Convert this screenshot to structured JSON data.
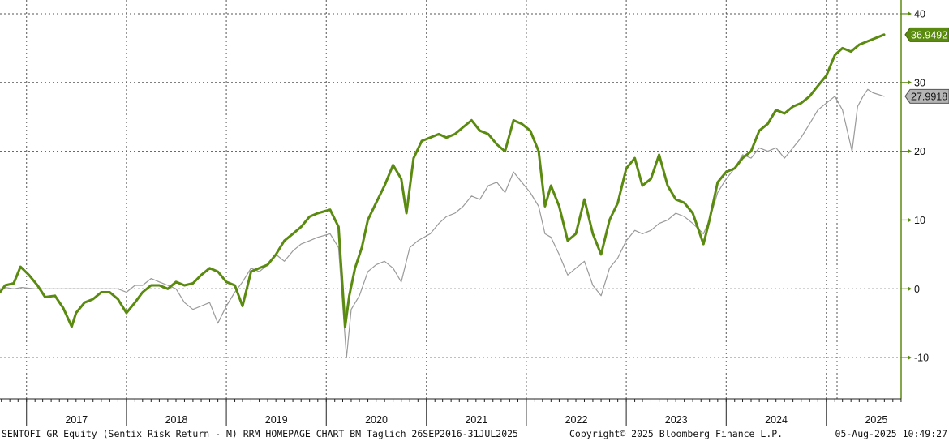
{
  "chart_data": {
    "type": "line",
    "title": "",
    "xlabel": "",
    "ylabel": "",
    "y_ticks": [
      -10,
      0,
      10,
      20,
      30,
      40
    ],
    "ylim": [
      -16,
      42
    ],
    "x_start": "2016-09-26",
    "x_end": "2025-07-31",
    "x_axis_years": [
      "2017",
      "2018",
      "2019",
      "2020",
      "2021",
      "2022",
      "2023",
      "2024",
      "2025"
    ],
    "grid": true,
    "legend": "none",
    "series": [
      {
        "color": "#5a8a0f",
        "last_value_label": "36.9492",
        "points": [
          [
            "2016-09-26",
            -0.5
          ],
          [
            "2016-10-15",
            0.5
          ],
          [
            "2016-11-15",
            0.8
          ],
          [
            "2016-12-10",
            3.2
          ],
          [
            "2017-01-10",
            2.0
          ],
          [
            "2017-02-10",
            0.5
          ],
          [
            "2017-03-10",
            -1.2
          ],
          [
            "2017-04-15",
            -1.0
          ],
          [
            "2017-05-15",
            -2.8
          ],
          [
            "2017-06-15",
            -5.5
          ],
          [
            "2017-07-01",
            -3.5
          ],
          [
            "2017-08-01",
            -2.0
          ],
          [
            "2017-09-01",
            -1.5
          ],
          [
            "2017-10-01",
            -0.5
          ],
          [
            "2017-11-01",
            -0.5
          ],
          [
            "2017-12-01",
            -1.5
          ],
          [
            "2018-01-01",
            -3.5
          ],
          [
            "2018-02-01",
            -2.0
          ],
          [
            "2018-03-01",
            -0.5
          ],
          [
            "2018-04-01",
            0.5
          ],
          [
            "2018-05-01",
            0.5
          ],
          [
            "2018-06-01",
            0.0
          ],
          [
            "2018-07-01",
            1.0
          ],
          [
            "2018-08-01",
            0.5
          ],
          [
            "2018-09-01",
            0.8
          ],
          [
            "2018-10-01",
            2.0
          ],
          [
            "2018-11-01",
            3.0
          ],
          [
            "2018-12-01",
            2.5
          ],
          [
            "2019-01-01",
            1.0
          ],
          [
            "2019-02-01",
            0.5
          ],
          [
            "2019-03-01",
            -2.5
          ],
          [
            "2019-04-01",
            2.5
          ],
          [
            "2019-05-01",
            3.0
          ],
          [
            "2019-06-01",
            3.5
          ],
          [
            "2019-07-01",
            5.0
          ],
          [
            "2019-08-01",
            7.0
          ],
          [
            "2019-09-01",
            8.0
          ],
          [
            "2019-10-01",
            9.0
          ],
          [
            "2019-11-01",
            10.5
          ],
          [
            "2019-12-01",
            11.0
          ],
          [
            "2020-01-15",
            11.5
          ],
          [
            "2020-02-15",
            9.0
          ],
          [
            "2020-03-10",
            -5.5
          ],
          [
            "2020-03-25",
            -1.0
          ],
          [
            "2020-04-15",
            3.0
          ],
          [
            "2020-05-10",
            6.0
          ],
          [
            "2020-06-01",
            10.0
          ],
          [
            "2020-07-01",
            12.5
          ],
          [
            "2020-08-01",
            15.0
          ],
          [
            "2020-09-01",
            18.0
          ],
          [
            "2020-10-01",
            16.0
          ],
          [
            "2020-10-20",
            11.0
          ],
          [
            "2020-11-15",
            19.0
          ],
          [
            "2020-12-15",
            21.5
          ],
          [
            "2021-01-15",
            22.0
          ],
          [
            "2021-02-15",
            22.5
          ],
          [
            "2021-03-15",
            22.0
          ],
          [
            "2021-04-15",
            22.5
          ],
          [
            "2021-05-15",
            23.5
          ],
          [
            "2021-06-15",
            24.5
          ],
          [
            "2021-07-15",
            23.0
          ],
          [
            "2021-08-15",
            22.5
          ],
          [
            "2021-09-15",
            21.0
          ],
          [
            "2021-10-15",
            20.0
          ],
          [
            "2021-11-15",
            24.5
          ],
          [
            "2021-12-15",
            24.0
          ],
          [
            "2022-01-15",
            23.0
          ],
          [
            "2022-02-15",
            20.0
          ],
          [
            "2022-03-10",
            12.0
          ],
          [
            "2022-04-01",
            15.0
          ],
          [
            "2022-05-01",
            12.0
          ],
          [
            "2022-06-01",
            7.0
          ],
          [
            "2022-07-01",
            8.0
          ],
          [
            "2022-08-01",
            13.0
          ],
          [
            "2022-09-01",
            8.0
          ],
          [
            "2022-10-01",
            5.0
          ],
          [
            "2022-11-01",
            10.0
          ],
          [
            "2022-12-01",
            12.5
          ],
          [
            "2023-01-01",
            17.5
          ],
          [
            "2023-02-01",
            19.0
          ],
          [
            "2023-03-01",
            15.0
          ],
          [
            "2023-04-01",
            16.0
          ],
          [
            "2023-05-01",
            19.5
          ],
          [
            "2023-06-01",
            15.0
          ],
          [
            "2023-07-01",
            13.0
          ],
          [
            "2023-08-01",
            12.5
          ],
          [
            "2023-09-01",
            11.0
          ],
          [
            "2023-10-10",
            6.5
          ],
          [
            "2023-11-01",
            10.0
          ],
          [
            "2023-12-01",
            15.5
          ],
          [
            "2024-01-01",
            17.0
          ],
          [
            "2024-02-01",
            17.5
          ],
          [
            "2024-03-01",
            19.0
          ],
          [
            "2024-04-01",
            20.0
          ],
          [
            "2024-05-01",
            23.0
          ],
          [
            "2024-06-01",
            24.0
          ],
          [
            "2024-07-01",
            26.0
          ],
          [
            "2024-08-01",
            25.5
          ],
          [
            "2024-09-01",
            26.5
          ],
          [
            "2024-10-01",
            27.0
          ],
          [
            "2024-11-01",
            28.0
          ],
          [
            "2024-12-01",
            29.5
          ],
          [
            "2025-01-01",
            31.0
          ],
          [
            "2025-02-01",
            34.0
          ],
          [
            "2025-03-01",
            35.0
          ],
          [
            "2025-04-01",
            34.5
          ],
          [
            "2025-05-01",
            35.5
          ],
          [
            "2025-06-01",
            36.0
          ],
          [
            "2025-07-31",
            36.9492
          ]
        ]
      },
      {
        "color": "#9a9a9a",
        "last_value_label": "27.9918",
        "points": [
          [
            "2016-09-26",
            -0.5
          ],
          [
            "2016-10-15",
            0.2
          ],
          [
            "2016-11-15",
            0.0
          ],
          [
            "2016-12-15",
            0.2
          ],
          [
            "2017-02-01",
            0.0
          ],
          [
            "2017-04-01",
            0.0
          ],
          [
            "2017-06-01",
            0.0
          ],
          [
            "2017-08-01",
            0.0
          ],
          [
            "2017-10-01",
            0.0
          ],
          [
            "2017-12-01",
            0.0
          ],
          [
            "2018-01-01",
            -0.5
          ],
          [
            "2018-02-01",
            0.5
          ],
          [
            "2018-03-01",
            0.5
          ],
          [
            "2018-04-01",
            1.5
          ],
          [
            "2018-05-01",
            1.0
          ],
          [
            "2018-06-01",
            0.5
          ],
          [
            "2018-07-01",
            0.0
          ],
          [
            "2018-08-01",
            -2.0
          ],
          [
            "2018-09-01",
            -3.0
          ],
          [
            "2018-10-01",
            -2.5
          ],
          [
            "2018-11-01",
            -2.0
          ],
          [
            "2018-12-01",
            -5.0
          ],
          [
            "2019-01-01",
            -2.5
          ],
          [
            "2019-02-01",
            -0.5
          ],
          [
            "2019-03-01",
            1.0
          ],
          [
            "2019-04-01",
            3.0
          ],
          [
            "2019-05-01",
            2.5
          ],
          [
            "2019-06-01",
            3.5
          ],
          [
            "2019-07-01",
            5.0
          ],
          [
            "2019-08-01",
            4.0
          ],
          [
            "2019-09-01",
            5.5
          ],
          [
            "2019-10-01",
            6.5
          ],
          [
            "2019-11-01",
            7.0
          ],
          [
            "2019-12-01",
            7.5
          ],
          [
            "2020-01-15",
            8.0
          ],
          [
            "2020-02-15",
            6.0
          ],
          [
            "2020-03-15",
            -10.0
          ],
          [
            "2020-04-01",
            -3.0
          ],
          [
            "2020-05-01",
            -1.0
          ],
          [
            "2020-06-01",
            2.5
          ],
          [
            "2020-07-01",
            3.5
          ],
          [
            "2020-08-01",
            4.0
          ],
          [
            "2020-09-01",
            3.0
          ],
          [
            "2020-10-01",
            1.0
          ],
          [
            "2020-11-01",
            6.0
          ],
          [
            "2020-12-01",
            7.0
          ],
          [
            "2021-01-15",
            8.0
          ],
          [
            "2021-02-15",
            9.5
          ],
          [
            "2021-03-15",
            10.5
          ],
          [
            "2021-04-15",
            11.0
          ],
          [
            "2021-05-15",
            12.0
          ],
          [
            "2021-06-15",
            13.5
          ],
          [
            "2021-07-15",
            13.0
          ],
          [
            "2021-08-15",
            15.0
          ],
          [
            "2021-09-15",
            15.5
          ],
          [
            "2021-10-15",
            14.0
          ],
          [
            "2021-11-15",
            17.0
          ],
          [
            "2021-12-15",
            15.5
          ],
          [
            "2022-01-15",
            14.0
          ],
          [
            "2022-02-15",
            12.0
          ],
          [
            "2022-03-10",
            8.0
          ],
          [
            "2022-04-01",
            7.5
          ],
          [
            "2022-05-01",
            5.0
          ],
          [
            "2022-06-01",
            2.0
          ],
          [
            "2022-07-01",
            3.0
          ],
          [
            "2022-08-01",
            4.0
          ],
          [
            "2022-09-01",
            0.5
          ],
          [
            "2022-10-01",
            -1.0
          ],
          [
            "2022-11-01",
            3.0
          ],
          [
            "2022-12-01",
            4.5
          ],
          [
            "2023-01-01",
            7.0
          ],
          [
            "2023-02-01",
            8.5
          ],
          [
            "2023-03-01",
            8.0
          ],
          [
            "2023-04-01",
            8.5
          ],
          [
            "2023-05-01",
            9.5
          ],
          [
            "2023-06-01",
            10.0
          ],
          [
            "2023-07-01",
            11.0
          ],
          [
            "2023-08-01",
            10.5
          ],
          [
            "2023-09-01",
            9.5
          ],
          [
            "2023-10-10",
            8.0
          ],
          [
            "2023-11-01",
            10.0
          ],
          [
            "2023-12-01",
            14.0
          ],
          [
            "2024-01-01",
            16.0
          ],
          [
            "2024-02-01",
            17.5
          ],
          [
            "2024-03-01",
            19.5
          ],
          [
            "2024-04-01",
            19.0
          ],
          [
            "2024-05-01",
            20.5
          ],
          [
            "2024-06-01",
            20.0
          ],
          [
            "2024-07-01",
            20.5
          ],
          [
            "2024-08-01",
            19.0
          ],
          [
            "2024-09-01",
            20.5
          ],
          [
            "2024-10-01",
            22.0
          ],
          [
            "2024-11-01",
            24.0
          ],
          [
            "2024-12-01",
            26.0
          ],
          [
            "2025-01-01",
            27.0
          ],
          [
            "2025-02-01",
            28.0
          ],
          [
            "2025-03-01",
            26.0
          ],
          [
            "2025-04-05",
            20.0
          ],
          [
            "2025-04-25",
            26.5
          ],
          [
            "2025-05-15",
            28.0
          ],
          [
            "2025-06-01",
            29.0
          ],
          [
            "2025-06-20",
            28.5
          ],
          [
            "2025-07-31",
            27.9918
          ]
        ]
      }
    ]
  },
  "footer": {
    "left": "SENTOFI GR Equity (Sentix Risk Return - M) RRM HOMEPAGE CHART BM  Täglich 26SEP2016-31JUL2025",
    "center": "Copyright© 2025 Bloomberg Finance L.P.",
    "right": "05-Aug-2025 10:49:27"
  }
}
